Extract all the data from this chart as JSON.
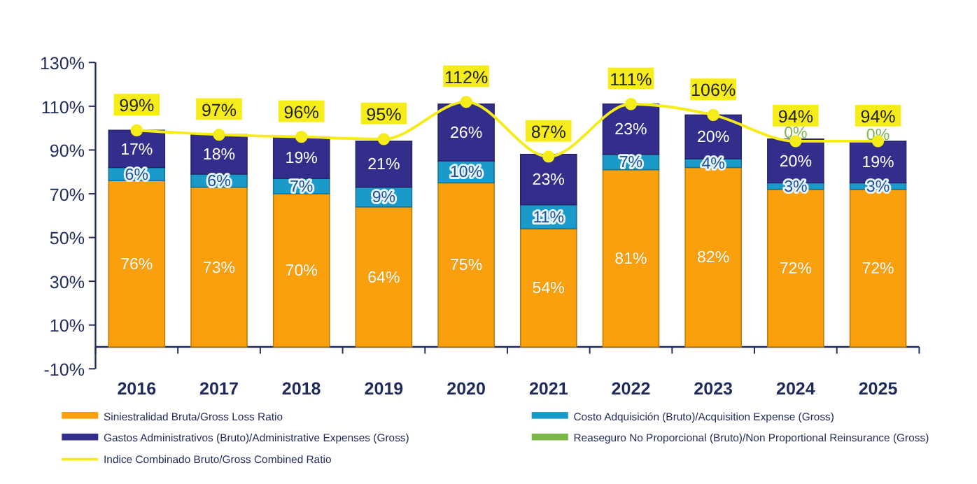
{
  "chart_data": {
    "type": "bar",
    "stacked": true,
    "categories": [
      "2016",
      "2017",
      "2018",
      "2019",
      "2020",
      "2021",
      "2022",
      "2023",
      "2024",
      "2025"
    ],
    "ylim": [
      -10,
      130
    ],
    "yticks": [
      {
        "value": -10,
        "label": "-10%"
      },
      {
        "value": 10,
        "label": "10%"
      },
      {
        "value": 30,
        "label": "30%"
      },
      {
        "value": 50,
        "label": "50%"
      },
      {
        "value": 70,
        "label": "70%"
      },
      {
        "value": 90,
        "label": "90%"
      },
      {
        "value": 110,
        "label": "110%"
      },
      {
        "value": 130,
        "label": "130%"
      }
    ],
    "grid": false,
    "legend": "bottom",
    "series": [
      {
        "name": "Siniestralidad Bruta/Gross Loss Ratio",
        "color": "#f9a00c",
        "values": [
          76,
          73,
          70,
          64,
          75,
          54,
          81,
          82,
          72,
          72
        ],
        "value_labels": [
          "76%",
          "73%",
          "70%",
          "64%",
          "75%",
          "54%",
          "81%",
          "82%",
          "72%",
          "72%"
        ]
      },
      {
        "name": "Costo Adquisición (Bruto)/Acquisition Expense (Gross)",
        "color": "#1a9ac9",
        "values": [
          6,
          6,
          7,
          9,
          10,
          11,
          7,
          4,
          3,
          3
        ],
        "value_labels": [
          "6%",
          "6%",
          "7%",
          "9%",
          "10%",
          "11%",
          "7%",
          "4%",
          "3%",
          "3%"
        ]
      },
      {
        "name": "Gastos Administrativos (Bruto)/Administrative Expenses (Gross)",
        "color": "#332e8c",
        "values": [
          17,
          18,
          19,
          21,
          26,
          23,
          23,
          20,
          20,
          19
        ],
        "value_labels": [
          "17%",
          "18%",
          "19%",
          "21%",
          "26%",
          "23%",
          "23%",
          "20%",
          "20%",
          "19%"
        ]
      },
      {
        "name": "Reaseguro No Proporcional (Bruto)/Non Proportional Reinsurance (Gross)",
        "color": "#7ab648",
        "values": [
          null,
          null,
          null,
          null,
          null,
          null,
          null,
          null,
          0,
          0
        ],
        "value_labels": [
          null,
          null,
          null,
          null,
          null,
          null,
          null,
          null,
          "0%",
          "0%"
        ]
      },
      {
        "name": "Indice Combinado Bruto/Gross Combined Ratio",
        "type": "line",
        "color": "#f5ec1a",
        "marker": "circle",
        "values": [
          99,
          97,
          96,
          95,
          112,
          87,
          111,
          106,
          94,
          94
        ],
        "value_labels": [
          "99%",
          "97%",
          "96%",
          "95%",
          "112%",
          "87%",
          "111%",
          "106%",
          "94%",
          "94%"
        ]
      }
    ]
  }
}
